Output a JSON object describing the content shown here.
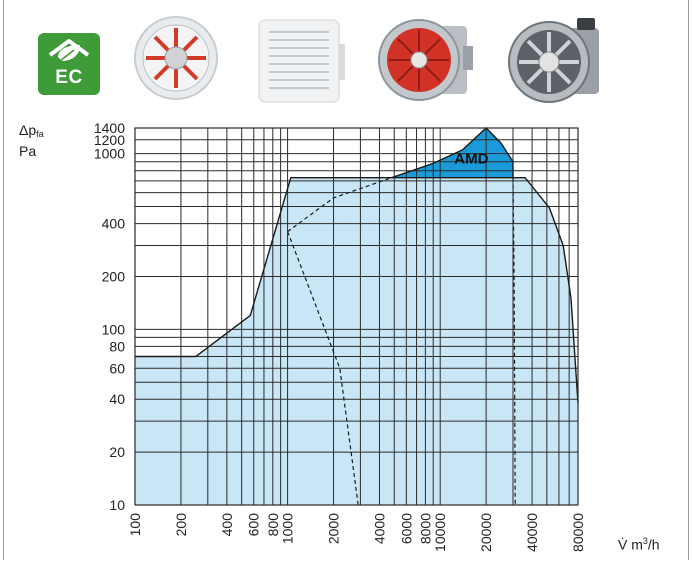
{
  "badge": {
    "text": "EC",
    "icon": "leaf-house-icon",
    "color": "#3f9a38"
  },
  "products": [
    {
      "icon": "wall-fan-red-blades-icon"
    },
    {
      "icon": "louvred-wall-fan-icon"
    },
    {
      "icon": "axial-duct-fan-red-icon"
    },
    {
      "icon": "axial-duct-fan-silver-icon"
    }
  ],
  "axis_labels": {
    "y_symbol": "Δp",
    "y_sub": "fa",
    "y_unit": "Pa",
    "x_symbol": "V̇",
    "x_unit_base": "m",
    "x_unit_exp": "3",
    "x_unit_tail": "/h"
  },
  "chart_data": {
    "type": "area",
    "x_scale": "log",
    "y_scale": "log",
    "xlim": [
      100,
      80000
    ],
    "ylim": [
      10,
      1400
    ],
    "x_ticks": [
      100,
      200,
      400,
      600,
      800,
      1000,
      2000,
      4000,
      6000,
      8000,
      10000,
      20000,
      40000,
      80000
    ],
    "x_tick_labels": [
      "100",
      "200",
      "400",
      "600",
      "800",
      "1000",
      "2000",
      "4000",
      "6000",
      "8000",
      "10000",
      "20000",
      "40000",
      "80000"
    ],
    "y_ticks": [
      10,
      20,
      40,
      60,
      80,
      100,
      200,
      400,
      1000,
      1200,
      1400
    ],
    "y_tick_labels": [
      "10",
      "20",
      "40",
      "60",
      "80",
      "100",
      "200",
      "400",
      "1000",
      "1200",
      "1400"
    ],
    "grid": true,
    "colors": {
      "envelope": "#c9e6f6",
      "amd": "#1a9ad8",
      "line": "#1a1a1a"
    },
    "series": [
      {
        "x": [
          100,
          250,
          570,
          1050,
          1050,
          36000,
          52000,
          64000,
          72000,
          80000,
          80000,
          100
        ],
        "y": [
          70,
          70,
          120,
          730,
          730,
          730,
          490,
          300,
          150,
          38,
          10,
          10
        ]
      },
      {
        "name": "AMD",
        "x": [
          4800,
          9000,
          14000,
          20000,
          25000,
          30000,
          30000,
          4800
        ],
        "y": [
          730,
          880,
          1050,
          1400,
          1150,
          900,
          730,
          730
        ]
      },
      {
        "x": [
          1000,
          2000,
          4800
        ],
        "y": [
          360,
          560,
          730
        ],
        "style": "dashed"
      },
      {
        "x": [
          1000,
          2200,
          2900
        ],
        "y": [
          360,
          60,
          10
        ],
        "style": "dashed"
      },
      {
        "x": [
          30000,
          30500,
          31000
        ],
        "y": [
          730,
          200,
          10
        ],
        "style": "dashed"
      }
    ]
  }
}
